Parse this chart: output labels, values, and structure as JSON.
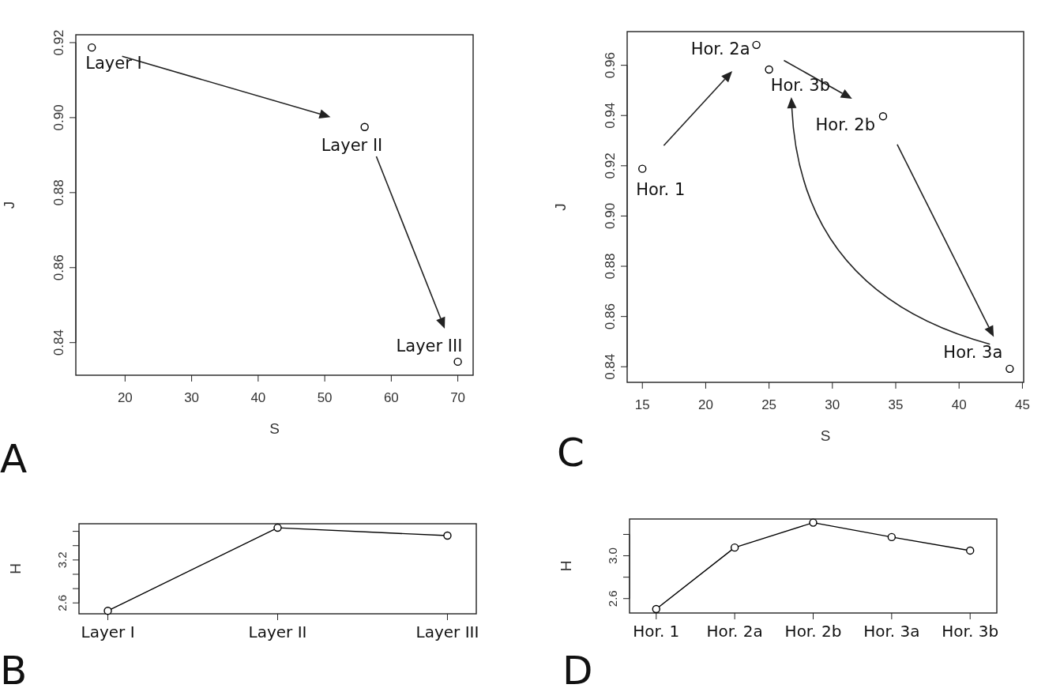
{
  "chart_data": [
    {
      "type": "scatter",
      "xlabel": "S",
      "ylabel": "J",
      "x": [
        15,
        56,
        70
      ],
      "values": [
        0.9187,
        0.8975,
        0.8349
      ],
      "xlim": [
        12.6,
        72.3
      ],
      "ylim": [
        0.8313,
        0.9221
      ],
      "xticks": [
        20,
        30,
        40,
        50,
        60,
        70
      ],
      "yticks": [
        0.84,
        0.86,
        0.88,
        {
          "value": 0.9,
          "label": "0.90"
        },
        0.92
      ],
      "marker": "circle",
      "color": "#000000",
      "annotations": [
        "A",
        {
          "text": "Layer I",
          "x": 15,
          "y": 0.9187
        },
        {
          "text": "Layer II",
          "x": 56,
          "y": 0.8975
        },
        {
          "text": "Layer III",
          "x": 70,
          "y": 0.8349
        }
      ]
    },
    {
      "type": "scatter",
      "xlabel": "S",
      "ylabel": "J",
      "x": [
        15,
        24,
        34,
        44,
        25
      ],
      "values": [
        0.9188,
        0.9681,
        0.9397,
        0.8392,
        0.9583
      ],
      "xlim": [
        13.8,
        45.1
      ],
      "ylim": [
        0.8338,
        0.9734
      ],
      "xticks": [
        15,
        20,
        25,
        30,
        35,
        40,
        45
      ],
      "yticks": [
        0.84,
        0.86,
        0.88,
        {
          "value": 0.9,
          "label": "0.90"
        },
        0.92,
        0.94,
        0.96
      ],
      "marker": "circle",
      "color": "#000000",
      "annotations": [
        "C",
        {
          "text": "Hor. 1",
          "x": 15,
          "y": 0.9188
        },
        {
          "text": "Hor. 2a",
          "x": 24,
          "y": 0.9681
        },
        {
          "text": "Hor. 2b",
          "x": 34,
          "y": 0.9397
        },
        {
          "text": "Hor. 3a",
          "x": 44,
          "y": 0.8392
        },
        {
          "text": "Hor. 3b",
          "x": 25,
          "y": 0.9583
        }
      ]
    },
    {
      "type": "line",
      "ylabel": "H",
      "categories": [
        "Layer I",
        "Layer II",
        "Layer III"
      ],
      "values": [
        2.49,
        3.65,
        3.54
      ],
      "ylim": [
        2.448,
        3.706
      ],
      "yticks": [
        2.6,
        {
          "value": 2.8,
          "label": null
        },
        {
          "value": 3.0,
          "label": null
        },
        3.2,
        {
          "value": 3.4,
          "label": null
        },
        {
          "value": 3.6,
          "label": null
        }
      ],
      "marker": "circle",
      "color": "#000000",
      "annotations": [
        "B"
      ]
    },
    {
      "type": "line",
      "ylabel": "H",
      "categories": [
        "Hor. 1",
        "Hor. 2a",
        "Hor. 2b",
        "Hor. 3a",
        "Hor. 3b"
      ],
      "values": [
        2.502,
        3.077,
        3.31,
        3.175,
        3.049
      ],
      "ylim": [
        2.465,
        3.344
      ],
      "yticks": [
        2.6,
        {
          "value": 2.8,
          "label": null
        },
        {
          "value": 3.0,
          "label": "3.0"
        },
        {
          "value": 3.2,
          "label": null
        }
      ],
      "marker": "circle",
      "color": "#000000",
      "annotations": [
        "D"
      ]
    }
  ]
}
